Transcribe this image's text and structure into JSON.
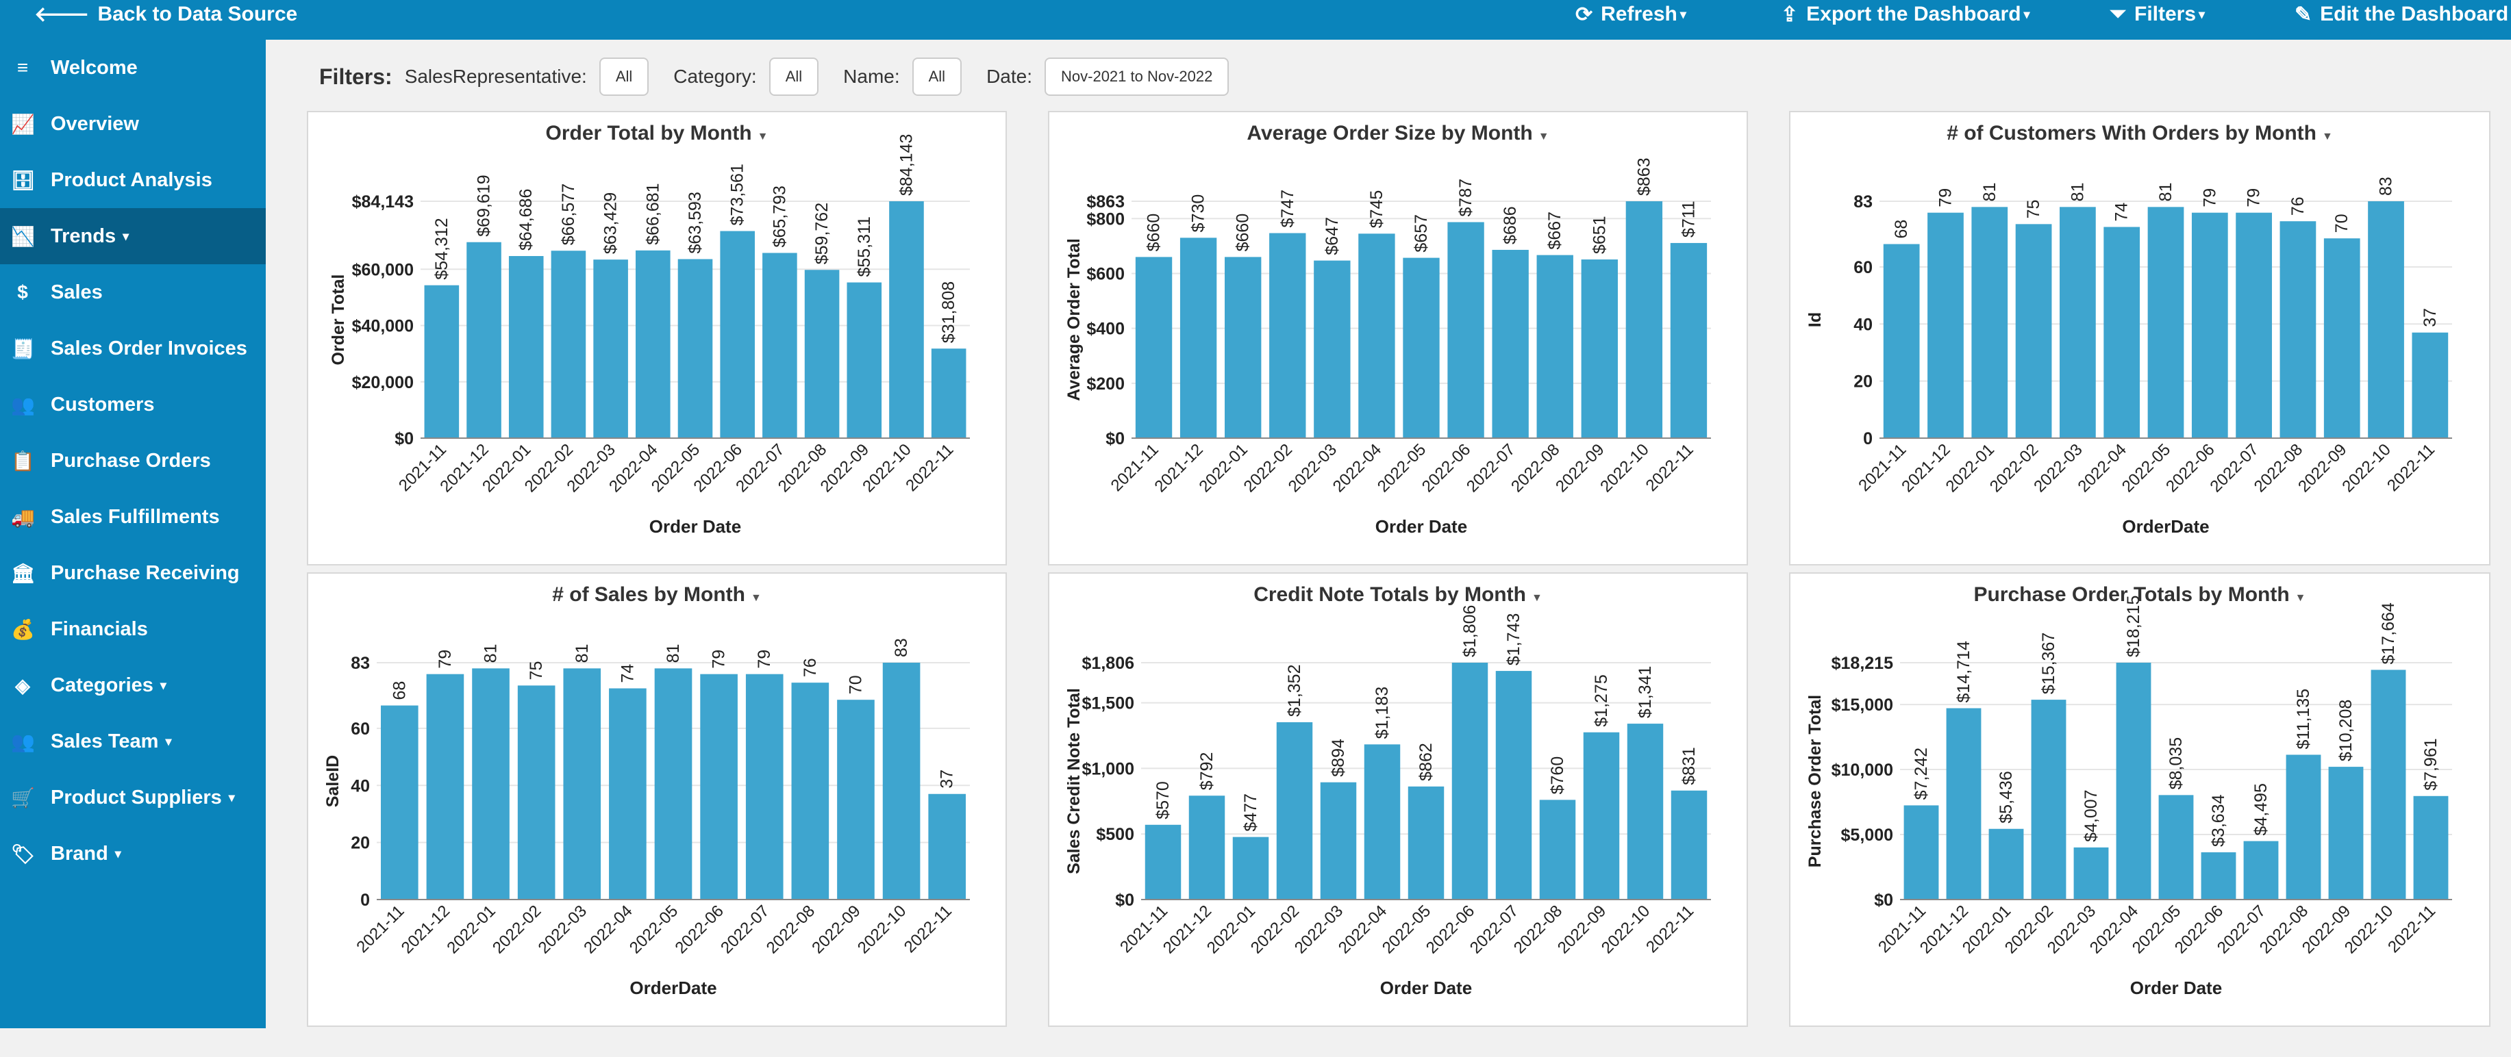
{
  "topbar": {
    "back_label": "Back to Data Source",
    "refresh_label": "Refresh",
    "export_label": "Export the Dashboard",
    "filters_label": "Filters",
    "edit_label": "Edit the Dashboard"
  },
  "sidebar": {
    "items": [
      {
        "label": "Welcome",
        "icon": "menu-icon",
        "glyph": "≡"
      },
      {
        "label": "Overview",
        "icon": "line-chart-icon",
        "glyph": "📈"
      },
      {
        "label": "Product Analysis",
        "icon": "database-icon",
        "glyph": "🗄"
      },
      {
        "label": "Trends",
        "icon": "area-chart-icon",
        "glyph": "📉",
        "dropdown": true,
        "active": true
      },
      {
        "label": "Sales",
        "icon": "dollar-icon",
        "glyph": "$"
      },
      {
        "label": "Sales Order Invoices",
        "icon": "invoice-icon",
        "glyph": "🧾"
      },
      {
        "label": "Customers",
        "icon": "users-icon",
        "glyph": "👥"
      },
      {
        "label": "Purchase Orders",
        "icon": "clipboard-icon",
        "glyph": "📋"
      },
      {
        "label": "Sales Fulfillments",
        "icon": "truck-icon",
        "glyph": "🚚"
      },
      {
        "label": "Purchase Receiving",
        "icon": "warehouse-icon",
        "glyph": "🏛"
      },
      {
        "label": "Financials",
        "icon": "money-icon",
        "glyph": "💰"
      },
      {
        "label": "Categories",
        "icon": "layers-icon",
        "glyph": "◈",
        "dropdown": true
      },
      {
        "label": "Sales Team",
        "icon": "team-icon",
        "glyph": "👥",
        "dropdown": true
      },
      {
        "label": "Product Suppliers",
        "icon": "dolly-icon",
        "glyph": "🛒",
        "dropdown": true
      },
      {
        "label": "Brand",
        "icon": "tags-icon",
        "glyph": "🏷",
        "dropdown": true
      }
    ]
  },
  "filters": {
    "label": "Filters:",
    "sales_rep_label": "SalesRepresentative:",
    "sales_rep_value": "All",
    "category_label": "Category:",
    "category_value": "All",
    "name_label": "Name:",
    "name_value": "All",
    "date_label": "Date:",
    "date_value": "Nov-2021 to Nov-2022"
  },
  "colors": {
    "bar": "#3ea5cf",
    "accent": "#0a84bb",
    "sidebar_active": "#075e87"
  },
  "chart_data": [
    {
      "type": "bar",
      "title": "Order Total by Month",
      "xlabel": "Order Date",
      "ylabel": "Order Total",
      "categories": [
        "2021-11",
        "2021-12",
        "2022-01",
        "2022-02",
        "2022-03",
        "2022-04",
        "2022-05",
        "2022-06",
        "2022-07",
        "2022-08",
        "2022-09",
        "2022-10",
        "2022-11"
      ],
      "values": [
        54312,
        69619,
        64686,
        66577,
        63429,
        66681,
        63593,
        73561,
        65793,
        59762,
        55311,
        84143,
        31808
      ],
      "labels": [
        "$54,312",
        "$69,619",
        "$64,686",
        "$66,577",
        "$63,429",
        "$66,681",
        "$63,593",
        "$73,561",
        "$65,793",
        "$59,762",
        "$55,311",
        "$84,143",
        "$31,808"
      ],
      "ylim": [
        0,
        84143
      ],
      "yticks": [
        0,
        20000,
        40000,
        60000,
        84143
      ],
      "ytick_labels": [
        "$0",
        "$20,000",
        "$40,000",
        "$60,000",
        "$84,143"
      ],
      "grid": true
    },
    {
      "type": "bar",
      "title": "Average Order Size by Month",
      "xlabel": "Order Date",
      "ylabel": "Average Order Total",
      "categories": [
        "2021-11",
        "2021-12",
        "2022-01",
        "2022-02",
        "2022-03",
        "2022-04",
        "2022-05",
        "2022-06",
        "2022-07",
        "2022-08",
        "2022-09",
        "2022-10",
        "2022-11"
      ],
      "values": [
        660,
        730,
        660,
        747,
        647,
        745,
        657,
        787,
        686,
        667,
        651,
        863,
        711
      ],
      "labels": [
        "$660",
        "$730",
        "$660",
        "$747",
        "$647",
        "$745",
        "$657",
        "$787",
        "$686",
        "$667",
        "$651",
        "$863",
        "$711"
      ],
      "ylim": [
        0,
        863
      ],
      "yticks": [
        0,
        200,
        400,
        600,
        800,
        863
      ],
      "ytick_labels": [
        "$0",
        "$200",
        "$400",
        "$600",
        "$800",
        "$863"
      ],
      "grid": true
    },
    {
      "type": "bar",
      "title": "# of Customers With Orders by Month",
      "xlabel": "OrderDate",
      "ylabel": "Id",
      "categories": [
        "2021-11",
        "2021-12",
        "2022-01",
        "2022-02",
        "2022-03",
        "2022-04",
        "2022-05",
        "2022-06",
        "2022-07",
        "2022-08",
        "2022-09",
        "2022-10",
        "2022-11"
      ],
      "values": [
        68,
        79,
        81,
        75,
        81,
        74,
        81,
        79,
        79,
        76,
        70,
        83,
        37
      ],
      "labels": [
        "68",
        "79",
        "81",
        "75",
        "81",
        "74",
        "81",
        "79",
        "79",
        "76",
        "70",
        "83",
        "37"
      ],
      "ylim": [
        0,
        83
      ],
      "yticks": [
        0,
        20,
        40,
        60,
        83
      ],
      "ytick_labels": [
        "0",
        "20",
        "40",
        "60",
        "83"
      ],
      "grid": true
    },
    {
      "type": "bar",
      "title": "# of Sales by Month",
      "xlabel": "OrderDate",
      "ylabel": "SaleID",
      "categories": [
        "2021-11",
        "2021-12",
        "2022-01",
        "2022-02",
        "2022-03",
        "2022-04",
        "2022-05",
        "2022-06",
        "2022-07",
        "2022-08",
        "2022-09",
        "2022-10",
        "2022-11"
      ],
      "values": [
        68,
        79,
        81,
        75,
        81,
        74,
        81,
        79,
        79,
        76,
        70,
        83,
        37
      ],
      "labels": [
        "68",
        "79",
        "81",
        "75",
        "81",
        "74",
        "81",
        "79",
        "79",
        "76",
        "70",
        "83",
        "37"
      ],
      "ylim": [
        0,
        83
      ],
      "yticks": [
        0,
        20,
        40,
        60,
        83
      ],
      "ytick_labels": [
        "0",
        "20",
        "40",
        "60",
        "83"
      ],
      "grid": true
    },
    {
      "type": "bar",
      "title": "Credit Note Totals by Month",
      "xlabel": "Order Date",
      "ylabel": "Sales Credit Note Total",
      "categories": [
        "2021-11",
        "2021-12",
        "2022-01",
        "2022-02",
        "2022-03",
        "2022-04",
        "2022-05",
        "2022-06",
        "2022-07",
        "2022-08",
        "2022-09",
        "2022-10",
        "2022-11"
      ],
      "values": [
        570,
        792,
        477,
        1352,
        894,
        1183,
        862,
        1806,
        1743,
        760,
        1275,
        1341,
        831
      ],
      "labels": [
        "$570",
        "$792",
        "$477",
        "$1,352",
        "$894",
        "$1,183",
        "$862",
        "$1,806",
        "$1,743",
        "$760",
        "$1,275",
        "$1,341",
        "$831"
      ],
      "ylim": [
        0,
        1806
      ],
      "yticks": [
        0,
        500,
        1000,
        1500,
        1806
      ],
      "ytick_labels": [
        "$0",
        "$500",
        "$1,000",
        "$1,500",
        "$1,806"
      ],
      "grid": true
    },
    {
      "type": "bar",
      "title": "Purchase Order Totals by Month",
      "xlabel": "Order Date",
      "ylabel": "Purchase Order Total",
      "categories": [
        "2021-11",
        "2021-12",
        "2022-01",
        "2022-02",
        "2022-03",
        "2022-04",
        "2022-05",
        "2022-06",
        "2022-07",
        "2022-08",
        "2022-09",
        "2022-10",
        "2022-11"
      ],
      "values": [
        7242,
        14714,
        5436,
        15367,
        4007,
        18215,
        8035,
        3634,
        4495,
        11135,
        10208,
        17664,
        7961
      ],
      "labels": [
        "$7,242",
        "$14,714",
        "$5,436",
        "$15,367",
        "$4,007",
        "$18,215",
        "$8,035",
        "$3,634",
        "$4,495",
        "$11,135",
        "$10,208",
        "$17,664",
        "$7,961"
      ],
      "ylim": [
        0,
        18215
      ],
      "yticks": [
        0,
        5000,
        10000,
        15000,
        18215
      ],
      "ytick_labels": [
        "$0",
        "$5,000",
        "$10,000",
        "$15,000",
        "$18,215"
      ],
      "grid": true
    }
  ]
}
